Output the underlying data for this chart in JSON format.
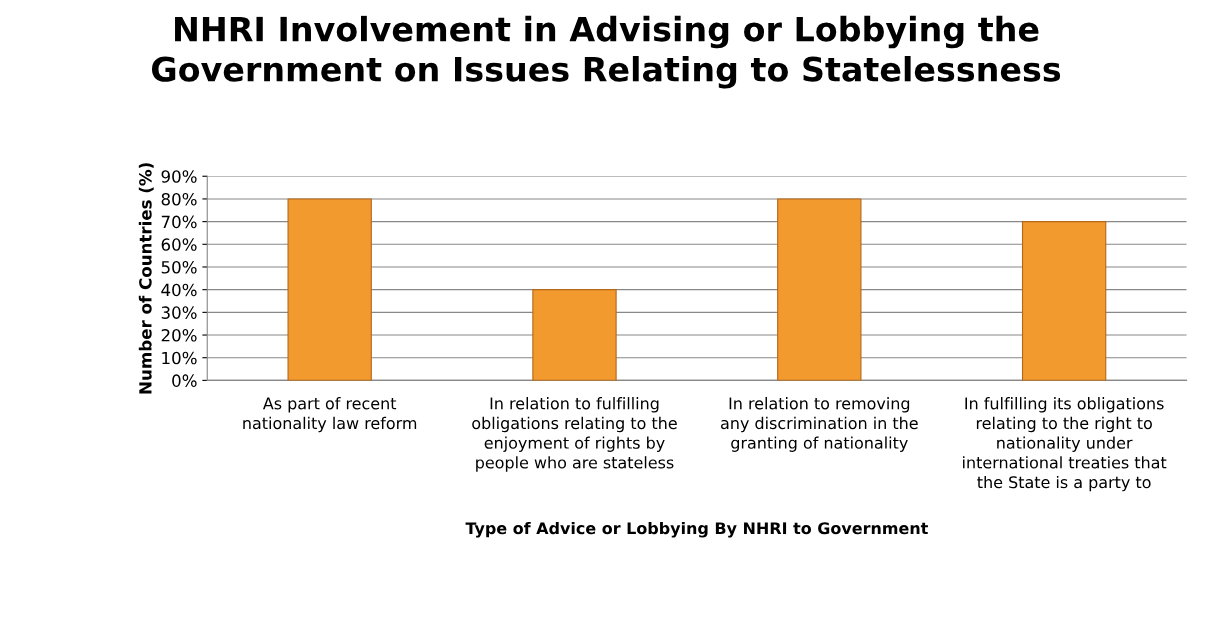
{
  "chart_data": {
    "type": "bar",
    "title": "NHRI Involvement in Advising or Lobbying the\nGovernment on Issues Relating to Statelessness",
    "xlabel": "Type of Advice or Lobbying By NHRI to Government",
    "ylabel": "Number of Countries (%)",
    "categories": [
      "As part of recent\nnationality law reform",
      "In relation to fulfilling\nobligations relating to the\nenjoyment of rights by\npeople who are stateless",
      "In relation to removing\nany discrimination in the\ngranting of nationality",
      "In fulfilling its obligations\nrelating to the right to\nnationality under\ninternational treaties that\nthe State is a party to"
    ],
    "values": [
      80,
      40,
      80,
      70
    ],
    "color": "#f39a2e",
    "ylim": [
      0,
      90
    ],
    "yticks": [
      {
        "value": 0,
        "label": "0%"
      },
      {
        "value": 10,
        "label": "10%"
      },
      {
        "value": 20,
        "label": "20%"
      },
      {
        "value": 30,
        "label": "30%"
      },
      {
        "value": 40,
        "label": "40%"
      },
      {
        "value": 50,
        "label": "50%"
      },
      {
        "value": 60,
        "label": "60%"
      },
      {
        "value": 70,
        "label": "70%"
      },
      {
        "value": 80,
        "label": "80%"
      },
      {
        "value": 90,
        "label": "90%"
      }
    ],
    "grid": "y"
  }
}
